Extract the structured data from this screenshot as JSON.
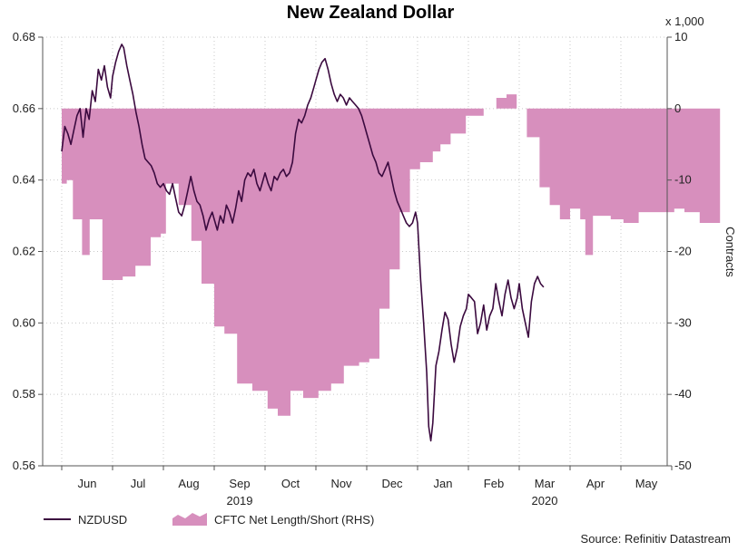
{
  "chart_data": {
    "type": "line",
    "title": "New Zealand Dollar",
    "x_months": [
      "Jun",
      "Jul",
      "Aug",
      "Sep",
      "Oct",
      "Nov",
      "Dec",
      "Jan",
      "Feb",
      "Mar",
      "Apr",
      "May"
    ],
    "x_years": [
      {
        "label": "2019",
        "under_month": "Sep"
      },
      {
        "label": "2020",
        "under_month": "Mar"
      }
    ],
    "y_left": {
      "ticks": [
        "0.56",
        "0.58",
        "0.60",
        "0.62",
        "0.64",
        "0.66",
        "0.68"
      ],
      "range": [
        0.56,
        0.68
      ]
    },
    "y_right": {
      "ticks": [
        "-50",
        "-40",
        "-30",
        "-20",
        "-10",
        "0",
        "10"
      ],
      "range": [
        -50,
        10
      ],
      "label": "Contracts",
      "multiplier": "x 1,000"
    },
    "series": [
      {
        "name": "NZDUSD",
        "axis": "left",
        "color": "#3b0a3f",
        "points": [
          [
            0.0,
            0.648
          ],
          [
            0.06,
            0.655
          ],
          [
            0.12,
            0.653
          ],
          [
            0.18,
            0.65
          ],
          [
            0.24,
            0.654
          ],
          [
            0.3,
            0.658
          ],
          [
            0.36,
            0.66
          ],
          [
            0.42,
            0.652
          ],
          [
            0.48,
            0.66
          ],
          [
            0.54,
            0.657
          ],
          [
            0.6,
            0.665
          ],
          [
            0.66,
            0.662
          ],
          [
            0.72,
            0.671
          ],
          [
            0.78,
            0.668
          ],
          [
            0.84,
            0.672
          ],
          [
            0.9,
            0.666
          ],
          [
            0.96,
            0.663
          ],
          [
            1.0,
            0.669
          ],
          [
            1.06,
            0.673
          ],
          [
            1.12,
            0.676
          ],
          [
            1.18,
            0.678
          ],
          [
            1.22,
            0.677
          ],
          [
            1.28,
            0.672
          ],
          [
            1.34,
            0.668
          ],
          [
            1.4,
            0.664
          ],
          [
            1.46,
            0.659
          ],
          [
            1.52,
            0.655
          ],
          [
            1.58,
            0.65
          ],
          [
            1.64,
            0.646
          ],
          [
            1.7,
            0.645
          ],
          [
            1.76,
            0.644
          ],
          [
            1.82,
            0.642
          ],
          [
            1.88,
            0.639
          ],
          [
            1.94,
            0.638
          ],
          [
            2.0,
            0.639
          ],
          [
            2.06,
            0.637
          ],
          [
            2.12,
            0.636
          ],
          [
            2.18,
            0.639
          ],
          [
            2.24,
            0.635
          ],
          [
            2.3,
            0.631
          ],
          [
            2.36,
            0.63
          ],
          [
            2.42,
            0.633
          ],
          [
            2.48,
            0.637
          ],
          [
            2.54,
            0.641
          ],
          [
            2.6,
            0.637
          ],
          [
            2.66,
            0.634
          ],
          [
            2.72,
            0.633
          ],
          [
            2.78,
            0.63
          ],
          [
            2.84,
            0.626
          ],
          [
            2.9,
            0.629
          ],
          [
            2.96,
            0.631
          ],
          [
            3.0,
            0.629
          ],
          [
            3.06,
            0.626
          ],
          [
            3.12,
            0.63
          ],
          [
            3.18,
            0.628
          ],
          [
            3.24,
            0.633
          ],
          [
            3.3,
            0.631
          ],
          [
            3.36,
            0.628
          ],
          [
            3.42,
            0.632
          ],
          [
            3.48,
            0.637
          ],
          [
            3.54,
            0.634
          ],
          [
            3.6,
            0.64
          ],
          [
            3.66,
            0.642
          ],
          [
            3.72,
            0.641
          ],
          [
            3.78,
            0.643
          ],
          [
            3.84,
            0.639
          ],
          [
            3.9,
            0.637
          ],
          [
            3.96,
            0.64
          ],
          [
            4.0,
            0.642
          ],
          [
            4.06,
            0.639
          ],
          [
            4.12,
            0.637
          ],
          [
            4.18,
            0.641
          ],
          [
            4.24,
            0.64
          ],
          [
            4.3,
            0.642
          ],
          [
            4.36,
            0.643
          ],
          [
            4.42,
            0.641
          ],
          [
            4.48,
            0.642
          ],
          [
            4.54,
            0.645
          ],
          [
            4.6,
            0.653
          ],
          [
            4.66,
            0.657
          ],
          [
            4.72,
            0.656
          ],
          [
            4.78,
            0.658
          ],
          [
            4.84,
            0.661
          ],
          [
            4.9,
            0.663
          ],
          [
            4.96,
            0.666
          ],
          [
            5.0,
            0.668
          ],
          [
            5.06,
            0.671
          ],
          [
            5.12,
            0.673
          ],
          [
            5.18,
            0.674
          ],
          [
            5.24,
            0.671
          ],
          [
            5.3,
            0.667
          ],
          [
            5.36,
            0.664
          ],
          [
            5.42,
            0.662
          ],
          [
            5.48,
            0.664
          ],
          [
            5.54,
            0.663
          ],
          [
            5.6,
            0.661
          ],
          [
            5.66,
            0.663
          ],
          [
            5.72,
            0.662
          ],
          [
            5.78,
            0.661
          ],
          [
            5.84,
            0.66
          ],
          [
            5.9,
            0.658
          ],
          [
            5.96,
            0.655
          ],
          [
            6.0,
            0.653
          ],
          [
            6.06,
            0.65
          ],
          [
            6.12,
            0.647
          ],
          [
            6.18,
            0.645
          ],
          [
            6.24,
            0.642
          ],
          [
            6.3,
            0.641
          ],
          [
            6.36,
            0.643
          ],
          [
            6.42,
            0.645
          ],
          [
            6.48,
            0.641
          ],
          [
            6.54,
            0.637
          ],
          [
            6.6,
            0.634
          ],
          [
            6.66,
            0.632
          ],
          [
            6.72,
            0.63
          ],
          [
            6.78,
            0.628
          ],
          [
            6.84,
            0.627
          ],
          [
            6.9,
            0.628
          ],
          [
            6.96,
            0.631
          ],
          [
            7.0,
            0.628
          ],
          [
            7.06,
            0.612
          ],
          [
            7.12,
            0.6
          ],
          [
            7.18,
            0.586
          ],
          [
            7.22,
            0.571
          ],
          [
            7.26,
            0.567
          ],
          [
            7.3,
            0.572
          ],
          [
            7.36,
            0.588
          ],
          [
            7.42,
            0.592
          ],
          [
            7.48,
            0.598
          ],
          [
            7.54,
            0.603
          ],
          [
            7.6,
            0.601
          ],
          [
            7.66,
            0.594
          ],
          [
            7.72,
            0.589
          ],
          [
            7.78,
            0.593
          ],
          [
            7.84,
            0.599
          ],
          [
            7.9,
            0.602
          ],
          [
            7.96,
            0.604
          ],
          [
            8.0,
            0.608
          ],
          [
            8.06,
            0.607
          ],
          [
            8.12,
            0.606
          ],
          [
            8.18,
            0.597
          ],
          [
            8.24,
            0.6
          ],
          [
            8.3,
            0.605
          ],
          [
            8.36,
            0.598
          ],
          [
            8.42,
            0.602
          ],
          [
            8.48,
            0.604
          ],
          [
            8.54,
            0.611
          ],
          [
            8.6,
            0.606
          ],
          [
            8.66,
            0.602
          ],
          [
            8.72,
            0.608
          ],
          [
            8.78,
            0.612
          ],
          [
            8.84,
            0.607
          ],
          [
            8.9,
            0.604
          ],
          [
            8.96,
            0.607
          ],
          [
            9.0,
            0.611
          ],
          [
            9.06,
            0.604
          ],
          [
            9.12,
            0.6
          ],
          [
            9.18,
            0.596
          ],
          [
            9.24,
            0.606
          ],
          [
            9.3,
            0.611
          ],
          [
            9.36,
            0.613
          ],
          [
            9.42,
            0.611
          ],
          [
            9.48,
            0.61
          ]
        ]
      },
      {
        "name": "CFTC Net Length/Short (RHS)",
        "axis": "right",
        "type": "area-step",
        "color": "#d78fbd",
        "points": [
          [
            0.0,
            -10.5
          ],
          [
            0.1,
            -10.0
          ],
          [
            0.22,
            -15.5
          ],
          [
            0.4,
            -20.5
          ],
          [
            0.55,
            -15.5
          ],
          [
            0.8,
            -24.0
          ],
          [
            1.2,
            -23.5
          ],
          [
            1.45,
            -22.0
          ],
          [
            1.75,
            -18.0
          ],
          [
            1.95,
            -17.5
          ],
          [
            2.05,
            -10.5
          ],
          [
            2.3,
            -13.5
          ],
          [
            2.55,
            -18.5
          ],
          [
            2.75,
            -24.5
          ],
          [
            3.0,
            -30.5
          ],
          [
            3.2,
            -31.5
          ],
          [
            3.45,
            -38.5
          ],
          [
            3.75,
            -39.5
          ],
          [
            4.05,
            -42.0
          ],
          [
            4.25,
            -43.0
          ],
          [
            4.5,
            -39.5
          ],
          [
            4.75,
            -40.5
          ],
          [
            5.05,
            -39.5
          ],
          [
            5.3,
            -38.5
          ],
          [
            5.55,
            -36.0
          ],
          [
            5.85,
            -35.5
          ],
          [
            6.05,
            -35.0
          ],
          [
            6.25,
            -28.0
          ],
          [
            6.45,
            -22.5
          ],
          [
            6.65,
            -14.5
          ],
          [
            6.85,
            -8.5
          ],
          [
            7.05,
            -7.5
          ],
          [
            7.3,
            -6.0
          ],
          [
            7.45,
            -5.0
          ],
          [
            7.65,
            -3.5
          ],
          [
            7.95,
            -1.0
          ],
          [
            8.3,
            0.0
          ],
          [
            8.55,
            1.5
          ],
          [
            8.75,
            2.0
          ],
          [
            8.95,
            0.0
          ],
          [
            9.15,
            -4.0
          ],
          [
            9.4,
            -11.0
          ],
          [
            9.6,
            -13.5
          ],
          [
            9.8,
            -15.5
          ],
          [
            10.0,
            -14.0
          ],
          [
            10.2,
            -15.5
          ],
          [
            10.3,
            -20.5
          ],
          [
            10.45,
            -15.0
          ],
          [
            10.8,
            -15.5
          ],
          [
            11.05,
            -16.0
          ],
          [
            11.35,
            -14.5
          ],
          [
            11.75,
            -14.5
          ],
          [
            12.05,
            -14.0
          ],
          [
            12.25,
            -14.5
          ],
          [
            12.55,
            -16.0
          ],
          [
            12.95,
            -16.0
          ]
        ]
      }
    ],
    "source": "Source: Refinitiv Datastream"
  },
  "colors": {
    "grid": "#c8c8c8",
    "axis": "#555555",
    "line": "#3b0a3f",
    "area": "#d78fbd"
  }
}
